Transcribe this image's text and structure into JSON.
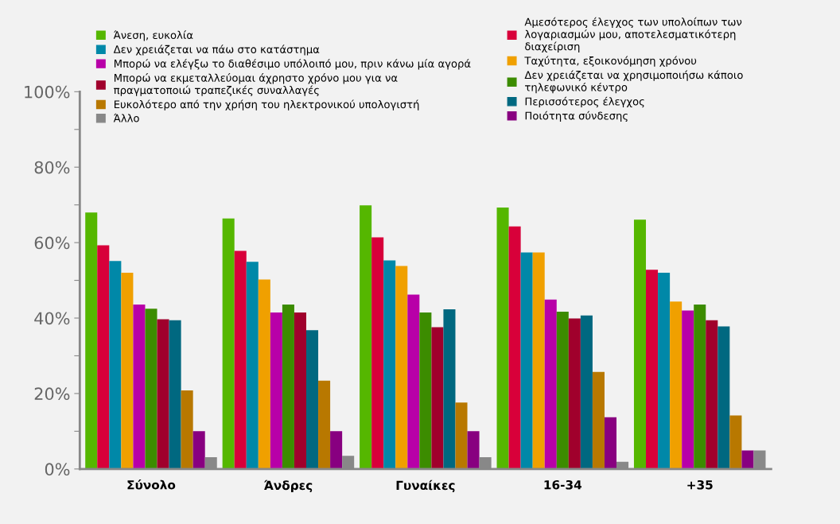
{
  "chart_data": {
    "type": "bar",
    "categories": [
      "Σύνολο",
      "Άνδρες",
      "Γυναίκες",
      "16-34",
      "+35"
    ],
    "series": [
      {
        "name": "Άνεση, ευκολία",
        "color": "#55b700",
        "values": [
          68.0,
          66.4,
          69.9,
          69.3,
          66.1
        ]
      },
      {
        "name": "Αμεσότερος έλεγχος των υπολοίπων των\nλογαριασμών μου, αποτελεσματικότερη\nδιαχείριση",
        "color": "#d8003a",
        "values": [
          59.3,
          57.8,
          61.4,
          64.3,
          52.8
        ]
      },
      {
        "name": "Δεν χρειάζεται να πάω στο κατάστημα",
        "color": "#0088a8",
        "values": [
          55.1,
          54.9,
          55.3,
          57.4,
          52.0
        ]
      },
      {
        "name": "Ταχύτητα, εξοικονόμηση χρόνου",
        "color": "#f0a000",
        "values": [
          52.0,
          50.2,
          53.8,
          57.4,
          44.4
        ]
      },
      {
        "name": "Μπορώ να ελέγξω το διαθέσιμο υπόλοιπό μου, πριν κάνω μία αγορά",
        "color": "#b800a8",
        "values": [
          43.6,
          41.5,
          46.2,
          44.9,
          42.0
        ]
      },
      {
        "name": "Δεν χρειάζεται να χρησιμοποιήσω κάποιο\nτηλεφωνικό κέντρο",
        "color": "#3c8c00",
        "values": [
          42.5,
          43.6,
          41.5,
          41.7,
          43.6
        ]
      },
      {
        "name": "Μπορώ να εκμεταλλεύομαι άχρηστο χρόνο μου για να\nπραγματοποιώ τραπεζικές συναλλαγές",
        "color": "#a0002c",
        "values": [
          39.7,
          41.5,
          37.6,
          39.9,
          39.4
        ]
      },
      {
        "name": "Περισσότερος έλεγχος",
        "color": "#006880",
        "values": [
          39.4,
          36.8,
          42.3,
          40.7,
          37.8
        ]
      },
      {
        "name": "Ευκολότερο από την χρήση του ηλεκτρονικού υπολογιστή",
        "color": "#b87800",
        "values": [
          20.8,
          23.4,
          17.6,
          25.7,
          14.2
        ]
      },
      {
        "name": "Ποιότητα σύνδεσης",
        "color": "#880080",
        "values": [
          10.0,
          10.0,
          10.0,
          13.7,
          4.9
        ]
      },
      {
        "name": "Άλλο",
        "color": "#888888",
        "values": [
          3.1,
          3.5,
          3.1,
          1.9,
          4.9
        ]
      }
    ],
    "ylim": [
      0,
      100
    ],
    "yticks": [
      {
        "value": 0,
        "label": "0%"
      },
      {
        "value": 10,
        "label": null
      },
      {
        "value": 20,
        "label": "20%"
      },
      {
        "value": 30,
        "label": null
      },
      {
        "value": 40,
        "label": "40%"
      },
      {
        "value": 50,
        "label": null
      },
      {
        "value": 60,
        "label": "60%"
      },
      {
        "value": 70,
        "label": null
      },
      {
        "value": 80,
        "label": "80%"
      },
      {
        "value": 90,
        "label": null
      },
      {
        "value": 100,
        "label": "100%"
      }
    ],
    "grid": false,
    "legend": "top"
  }
}
